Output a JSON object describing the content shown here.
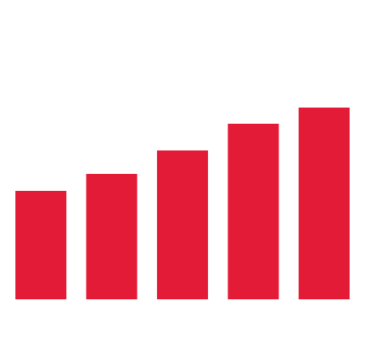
{
  "chart_data": {
    "type": "bar",
    "categories": [
      null,
      null,
      null,
      null,
      null
    ],
    "values": [
      134,
      155,
      184,
      217,
      237
    ],
    "color": "#e41b36",
    "ylim": [
      0,
      370
    ]
  }
}
